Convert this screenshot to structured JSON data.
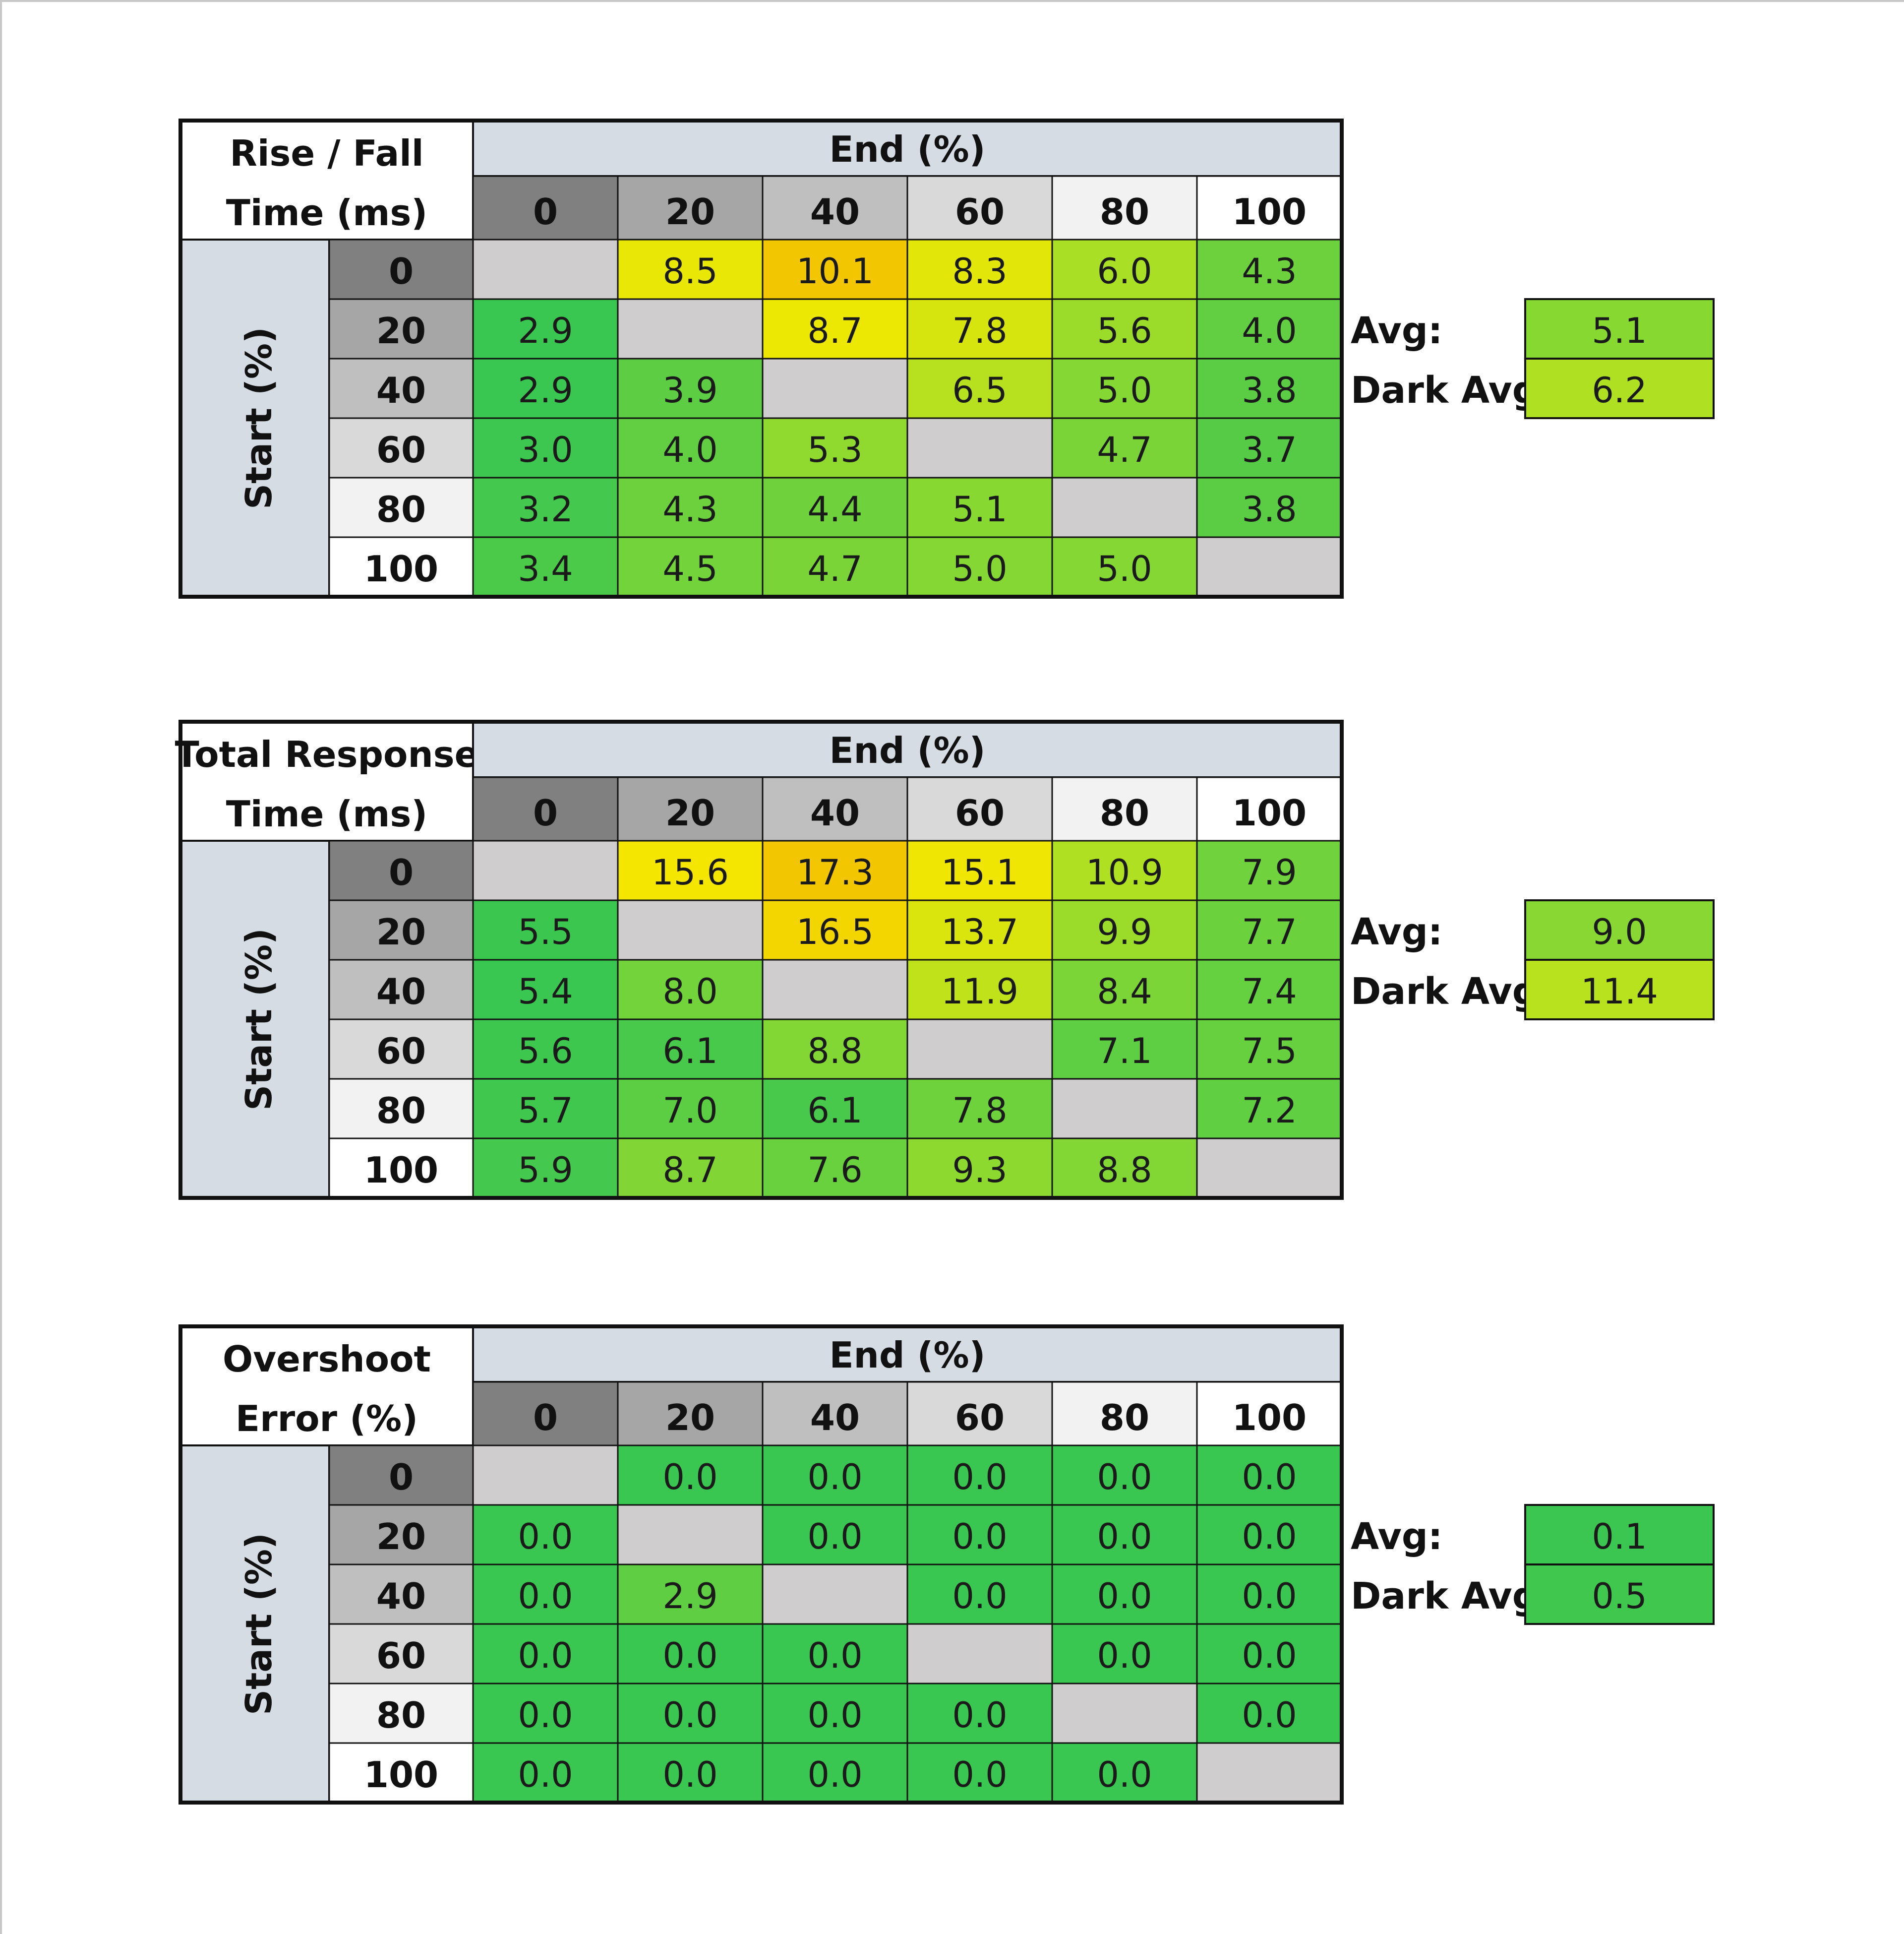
{
  "colors": {
    "diagonal": "#cfcdcd",
    "header_band": "#d6dce4",
    "border": "#111111",
    "grey_levels": [
      "#808080",
      "#a6a6a6",
      "#bfbfbf",
      "#d9d9d9",
      "#f2f2f2",
      "#ffffff"
    ],
    "scale_low": "#39c651",
    "scale_mid": "#aee023",
    "scale_high": "#f5e800",
    "scale_top": "#f2c600"
  },
  "chart_data": [
    {
      "type": "heatmap",
      "title_lines": [
        "Rise / Fall",
        "Time (ms)"
      ],
      "xlabel": "End (%)",
      "ylabel": "Start (%)",
      "x_categories": [
        "0",
        "20",
        "40",
        "60",
        "80",
        "100"
      ],
      "y_categories": [
        "0",
        "20",
        "40",
        "60",
        "80",
        "100"
      ],
      "values": [
        [
          null,
          "8.5",
          "10.1",
          "8.3",
          "6.0",
          "4.3"
        ],
        [
          "2.9",
          null,
          "8.7",
          "7.8",
          "5.6",
          "4.0"
        ],
        [
          "2.9",
          "3.9",
          null,
          "6.5",
          "5.0",
          "3.8"
        ],
        [
          "3.0",
          "4.0",
          "5.3",
          null,
          "4.7",
          "3.7"
        ],
        [
          "3.2",
          "4.3",
          "4.4",
          "5.1",
          null,
          "3.8"
        ],
        [
          "3.4",
          "4.5",
          "4.7",
          "5.0",
          "5.0",
          null
        ]
      ],
      "color_range": [
        2.9,
        10.1
      ],
      "summary": [
        {
          "label": "Avg:",
          "value": "5.1"
        },
        {
          "label": "Dark Avg:",
          "value": "6.2"
        }
      ]
    },
    {
      "type": "heatmap",
      "title_lines": [
        "Total Response",
        "Time (ms)"
      ],
      "xlabel": "End (%)",
      "ylabel": "Start (%)",
      "x_categories": [
        "0",
        "20",
        "40",
        "60",
        "80",
        "100"
      ],
      "y_categories": [
        "0",
        "20",
        "40",
        "60",
        "80",
        "100"
      ],
      "values": [
        [
          null,
          "15.6",
          "17.3",
          "15.1",
          "10.9",
          "7.9"
        ],
        [
          "5.5",
          null,
          "16.5",
          "13.7",
          "9.9",
          "7.7"
        ],
        [
          "5.4",
          "8.0",
          null,
          "11.9",
          "8.4",
          "7.4"
        ],
        [
          "5.6",
          "6.1",
          "8.8",
          null,
          "7.1",
          "7.5"
        ],
        [
          "5.7",
          "7.0",
          "6.1",
          "7.8",
          null,
          "7.2"
        ],
        [
          "5.9",
          "8.7",
          "7.6",
          "9.3",
          "8.8",
          null
        ]
      ],
      "color_range": [
        5.4,
        17.3
      ],
      "summary": [
        {
          "label": "Avg:",
          "value": "9.0"
        },
        {
          "label": "Dark Avg:",
          "value": "11.4"
        }
      ]
    },
    {
      "type": "heatmap",
      "title_lines": [
        "Overshoot",
        "Error (%)"
      ],
      "xlabel": "End (%)",
      "ylabel": "Start (%)",
      "x_categories": [
        "0",
        "20",
        "40",
        "60",
        "80",
        "100"
      ],
      "y_categories": [
        "0",
        "20",
        "40",
        "60",
        "80",
        "100"
      ],
      "values": [
        [
          null,
          "0.0",
          "0.0",
          "0.0",
          "0.0",
          "0.0"
        ],
        [
          "0.0",
          null,
          "0.0",
          "0.0",
          "0.0",
          "0.0"
        ],
        [
          "0.0",
          "2.9",
          null,
          "0.0",
          "0.0",
          "0.0"
        ],
        [
          "0.0",
          "0.0",
          "0.0",
          null,
          "0.0",
          "0.0"
        ],
        [
          "0.0",
          "0.0",
          "0.0",
          "0.0",
          null,
          "0.0"
        ],
        [
          "0.0",
          "0.0",
          "0.0",
          "0.0",
          "0.0",
          null
        ]
      ],
      "color_range": [
        0,
        20
      ],
      "summary": [
        {
          "label": "Avg:",
          "value": "0.1"
        },
        {
          "label": "Dark Avg:",
          "value": "0.5"
        }
      ]
    }
  ]
}
